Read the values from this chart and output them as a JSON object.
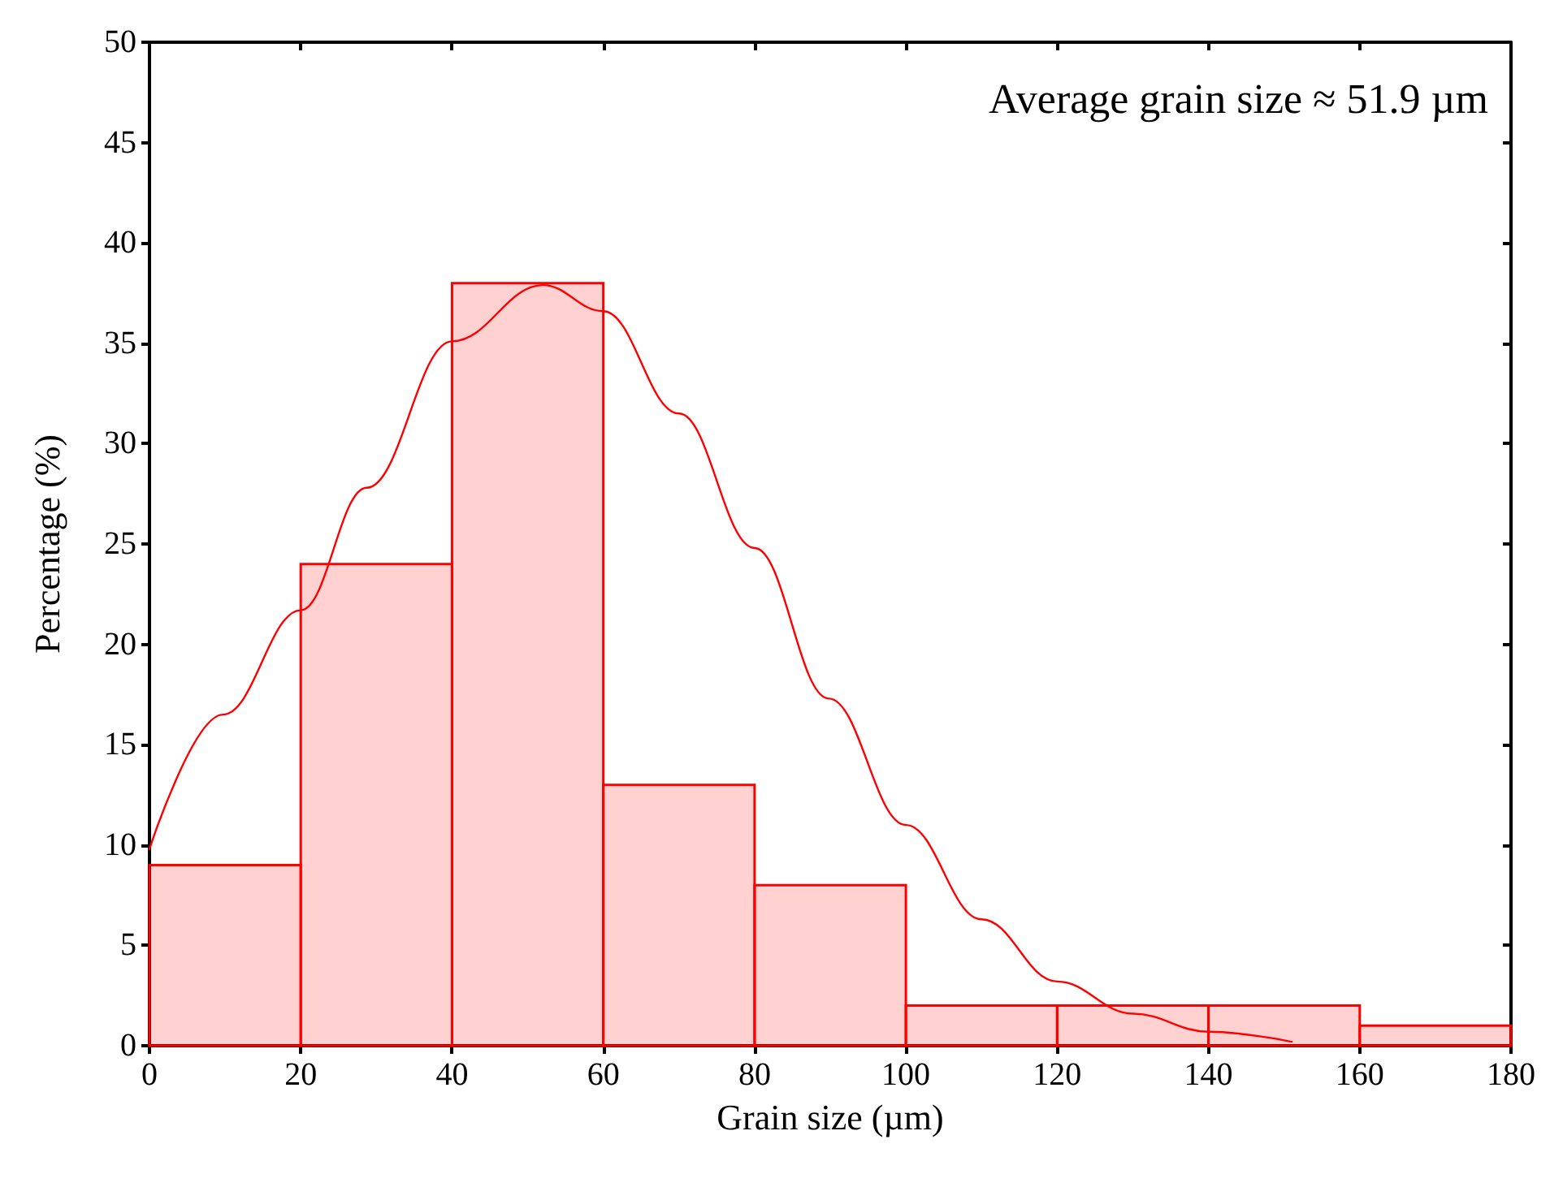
{
  "chart_data": {
    "type": "histogram",
    "xlabel": "Grain size (µm)",
    "ylabel": "Percentage (%)",
    "annotations": [
      "Average grain size ≈ 51.9 µm"
    ],
    "bins": [
      0,
      20,
      40,
      60,
      80,
      100,
      120,
      140,
      160,
      180
    ],
    "values": [
      9,
      24,
      38,
      13,
      8,
      2,
      2,
      2,
      1
    ],
    "color": "#ff0000",
    "series": [
      {
        "type": "line",
        "color": "#ff0000",
        "x": [
          0,
          9.7,
          20,
          28.7,
          40,
          52,
          60,
          70,
          80,
          89.8,
          100,
          110,
          120,
          130,
          140,
          151
        ],
        "values": [
          9.8,
          16.5,
          21.7,
          27.8,
          35.1,
          37.9,
          36.6,
          31.5,
          24.8,
          17.3,
          11,
          6.3,
          3.2,
          1.6,
          0.7,
          0.2
        ]
      }
    ],
    "xlim": [
      0,
      180
    ],
    "xticks": [
      0,
      20,
      40,
      60,
      80,
      100,
      120,
      140,
      160,
      180
    ],
    "ylim": [
      0,
      50
    ],
    "yticks": [
      0,
      5,
      10,
      15,
      20,
      25,
      30,
      35,
      40,
      45,
      50
    ],
    "grid": false,
    "marker": "none",
    "line_style": "solid"
  }
}
